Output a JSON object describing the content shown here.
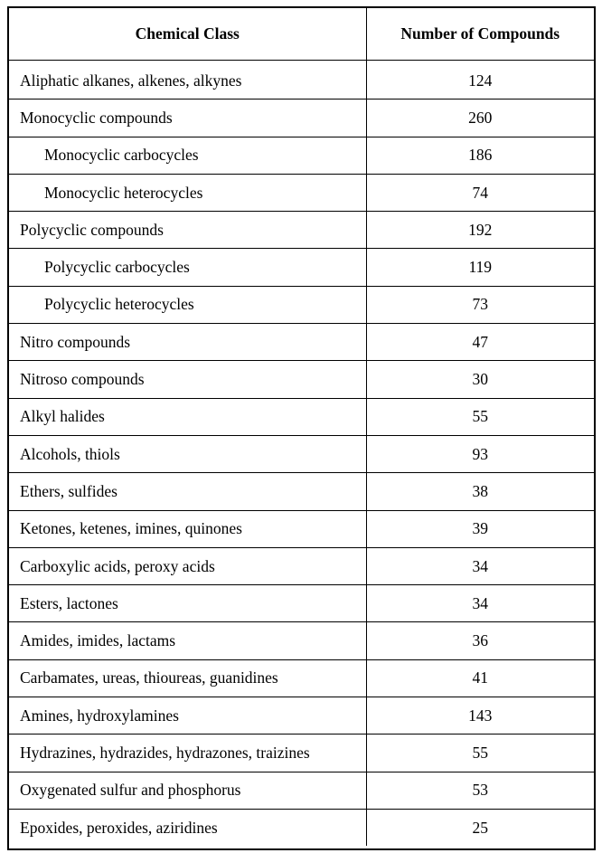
{
  "table": {
    "headers": {
      "chemical_class": "Chemical Class",
      "number_of_compounds": "Number of Compounds"
    },
    "rows": [
      {
        "class": "Aliphatic alkanes, alkenes, alkynes",
        "count": "124",
        "indent": false
      },
      {
        "class": "Monocyclic compounds",
        "count": "260",
        "indent": false
      },
      {
        "class": "Monocyclic carbocycles",
        "count": "186",
        "indent": true
      },
      {
        "class": "Monocyclic heterocycles",
        "count": "74",
        "indent": true
      },
      {
        "class": "Polycyclic compounds",
        "count": "192",
        "indent": false
      },
      {
        "class": "Polycyclic carbocycles",
        "count": "119",
        "indent": true
      },
      {
        "class": "Polycyclic heterocycles",
        "count": "73",
        "indent": true
      },
      {
        "class": "Nitro compounds",
        "count": "47",
        "indent": false
      },
      {
        "class": "Nitroso compounds",
        "count": "30",
        "indent": false
      },
      {
        "class": "Alkyl halides",
        "count": "55",
        "indent": false
      },
      {
        "class": "Alcohols, thiols",
        "count": "93",
        "indent": false
      },
      {
        "class": "Ethers, sulfides",
        "count": "38",
        "indent": false
      },
      {
        "class": "Ketones, ketenes, imines, quinones",
        "count": "39",
        "indent": false
      },
      {
        "class": "Carboxylic acids, peroxy acids",
        "count": "34",
        "indent": false
      },
      {
        "class": "Esters, lactones",
        "count": "34",
        "indent": false
      },
      {
        "class": "Amides, imides, lactams",
        "count": "36",
        "indent": false
      },
      {
        "class": "Carbamates, ureas, thioureas, guanidines",
        "count": "41",
        "indent": false
      },
      {
        "class": "Amines, hydroxylamines",
        "count": "143",
        "indent": false
      },
      {
        "class": "Hydrazines, hydrazides, hydrazones, traizines",
        "count": "55",
        "indent": false
      },
      {
        "class": "Oxygenated sulfur and phosphorus",
        "count": "53",
        "indent": false
      },
      {
        "class": "Epoxides, peroxides, aziridines",
        "count": "25",
        "indent": false
      }
    ]
  }
}
